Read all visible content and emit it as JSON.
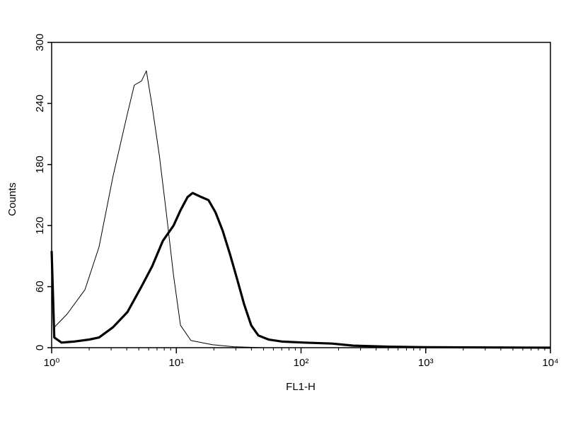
{
  "chart_data": {
    "type": "line",
    "xlabel": "FL1-H",
    "ylabel": "Counts",
    "xscale": "log",
    "xlim": [
      1,
      10000
    ],
    "ylim": [
      0,
      300
    ],
    "xticks": [
      {
        "value": 1,
        "label": "10⁰"
      },
      {
        "value": 10,
        "label": "10¹"
      },
      {
        "value": 100,
        "label": "10²"
      },
      {
        "value": 1000,
        "label": "10³"
      },
      {
        "value": 10000,
        "label": "10⁴"
      }
    ],
    "yticks": [
      0,
      60,
      120,
      180,
      240,
      300
    ],
    "grid": false,
    "series": [
      {
        "color": "#000000",
        "width": 1,
        "x": [
          1,
          1.05,
          1.15,
          1.33,
          1.85,
          2.4,
          3.1,
          4.05,
          4.6,
          5.25,
          5.75,
          6.4,
          7.3,
          8.3,
          9.5,
          10.8,
          13.1,
          19.4,
          28.7,
          50,
          100
        ],
        "values": [
          92,
          20,
          25,
          33,
          57,
          99,
          168,
          230,
          258,
          262,
          272,
          237,
          189,
          133,
          71,
          22,
          7,
          3,
          1,
          0,
          0
        ]
      },
      {
        "color": "#000000",
        "width": 3.2,
        "x": [
          1,
          1.05,
          1.2,
          1.5,
          2,
          2.4,
          3.1,
          4.05,
          5.25,
          6.4,
          7.8,
          9.5,
          10.8,
          12.3,
          13.5,
          15.9,
          18.1,
          20.6,
          23.5,
          26.9,
          30.6,
          34.9,
          39.8,
          45.4,
          55,
          71,
          106,
          178,
          262,
          508,
          985,
          10000
        ],
        "values": [
          95,
          10,
          5,
          6,
          8,
          10,
          20,
          35,
          60,
          80,
          105,
          120,
          135,
          148,
          152,
          148,
          145,
          133,
          115,
          92,
          68,
          43,
          22,
          12,
          8,
          6,
          5,
          4,
          2,
          1,
          0.5,
          0
        ]
      }
    ]
  }
}
